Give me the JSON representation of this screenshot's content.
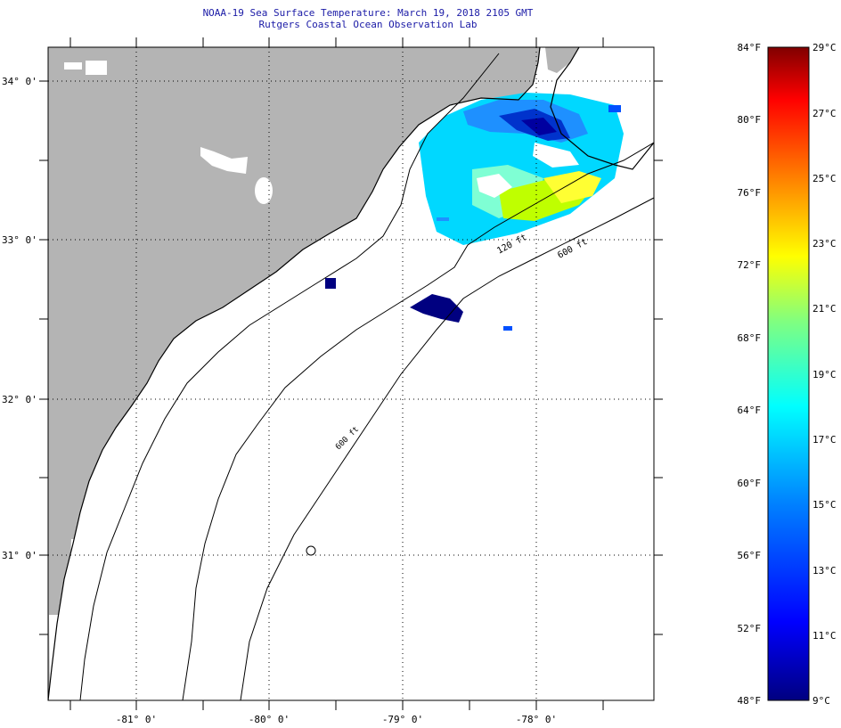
{
  "header": {
    "title": "NOAA-19 Sea Surface Temperature:  March 19, 2018 2105 GMT",
    "subtitle": "Rutgers Coastal Ocean Observation Lab"
  },
  "map": {
    "lat_labels": [
      "34° 0'",
      "33° 0'",
      "32° 0'",
      "31° 0'"
    ],
    "lon_labels": [
      "-81° 0'",
      "-80° 0'",
      "-79° 0'",
      "-78° 0'"
    ],
    "isobath_labels": [
      "120 ft",
      "600 ft",
      "600 ft"
    ],
    "land_color": "#b4b4b4",
    "ocean_color": "#ffffff"
  },
  "colorbar": {
    "fahrenheit_labels": [
      "84°F",
      "80°F",
      "76°F",
      "72°F",
      "68°F",
      "64°F",
      "60°F",
      "56°F",
      "52°F",
      "48°F"
    ],
    "celsius_labels": [
      "29°C",
      "27°C",
      "25°C",
      "23°C",
      "21°C",
      "19°C",
      "17°C",
      "15°C",
      "13°C",
      "11°C",
      "9°C"
    ],
    "range_f": [
      48,
      84
    ],
    "range_c": [
      9,
      29
    ],
    "colors": [
      "#000080",
      "#0000ff",
      "#0080ff",
      "#00ffff",
      "#80ff80",
      "#ffff00",
      "#ff8000",
      "#ff0000",
      "#800000"
    ]
  }
}
